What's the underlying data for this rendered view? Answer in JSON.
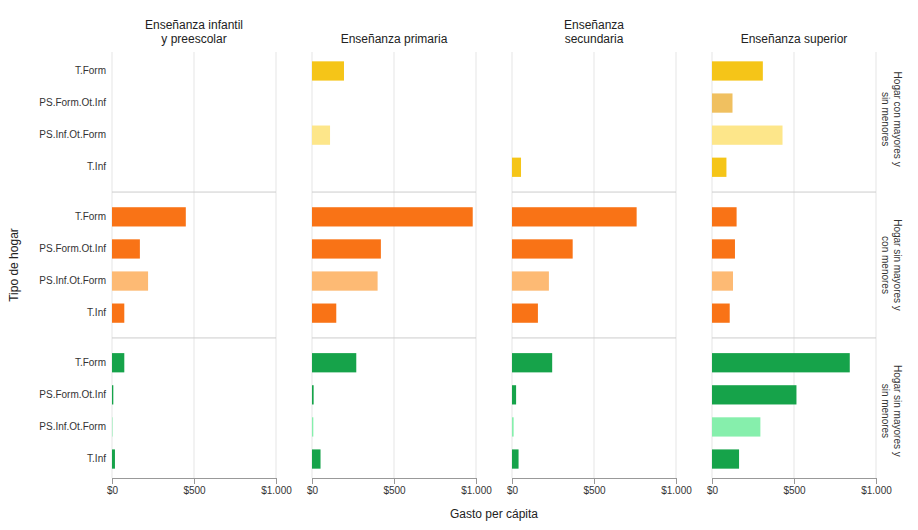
{
  "chart_data": [
    {
      "type": "bar",
      "orientation": "horizontal",
      "title": "Enseñanza infantil\ny preescolar",
      "xlabel": "Gasto per cápita",
      "ylabel": "Tipo de hogar",
      "categories": [
        "T.Form",
        "PS.Form.Ot.Inf",
        "PS.Inf.Ot.Form",
        "T.Inf"
      ],
      "series": [
        {
          "colors": [
            "#f5c518",
            "#f0c060",
            "#fde68a",
            "#f5c518"
          ],
          "values": [
            0,
            0,
            0,
            0
          ]
        },
        {
          "colors": [
            "#f97316",
            "#f97316",
            "#fdba74",
            "#f97316"
          ],
          "values": [
            450,
            170,
            220,
            75
          ]
        },
        {
          "colors": [
            "#16a34a",
            "#16a34a",
            "#86efac",
            "#16a34a"
          ],
          "values": [
            75,
            8,
            3,
            18
          ]
        }
      ],
      "xlim": [
        0,
        1000
      ],
      "xticks": [
        {
          "value": 0,
          "label": "$0"
        },
        {
          "value": 500,
          "label": "$500"
        },
        {
          "value": 1000,
          "label": "$1.000"
        }
      ],
      "grid": true
    },
    {
      "type": "bar",
      "orientation": "horizontal",
      "title": "Enseñanza primaria",
      "categories": [
        "T.Form",
        "PS.Form.Ot.Inf",
        "PS.Inf.Ot.Form",
        "T.Inf"
      ],
      "series": [
        {
          "colors": [
            "#f5c518",
            "#f0c060",
            "#fde68a",
            "#f5c518"
          ],
          "values": [
            195,
            0,
            110,
            0
          ]
        },
        {
          "colors": [
            "#f97316",
            "#f97316",
            "#fdba74",
            "#f97316"
          ],
          "values": [
            980,
            420,
            400,
            148
          ]
        },
        {
          "colors": [
            "#16a34a",
            "#16a34a",
            "#86efac",
            "#16a34a"
          ],
          "values": [
            270,
            10,
            8,
            52
          ]
        }
      ],
      "xlim": [
        0,
        1000
      ],
      "xticks": [
        {
          "value": 0,
          "label": "$0"
        },
        {
          "value": 500,
          "label": "$500"
        },
        {
          "value": 1000,
          "label": "$1.000"
        }
      ],
      "grid": true,
      "tick_labels": "x"
    },
    {
      "type": "bar",
      "orientation": "horizontal",
      "title": "Enseñanza\nsecundaria",
      "categories": [
        "T.Form",
        "PS.Form.Ot.Inf",
        "PS.Inf.Ot.Form",
        "T.Inf"
      ],
      "series": [
        {
          "colors": [
            "#f5c518",
            "#f0c060",
            "#fde68a",
            "#f5c518"
          ],
          "values": [
            0,
            0,
            0,
            55
          ]
        },
        {
          "colors": [
            "#f97316",
            "#f97316",
            "#fdba74",
            "#f97316"
          ],
          "values": [
            760,
            370,
            225,
            158
          ]
        },
        {
          "colors": [
            "#16a34a",
            "#16a34a",
            "#86efac",
            "#16a34a"
          ],
          "values": [
            245,
            25,
            10,
            40
          ]
        }
      ],
      "xlim": [
        0,
        1000
      ],
      "xticks": [
        {
          "value": 0,
          "label": "$0"
        },
        {
          "value": 500,
          "label": "$500"
        },
        {
          "value": 1000,
          "label": "$1.000"
        }
      ],
      "grid": true,
      "tick_labels": "x"
    },
    {
      "type": "bar",
      "orientation": "horizontal",
      "title": "Enseñanza superior",
      "categories": [
        "T.Form",
        "PS.Form.Ot.Inf",
        "PS.Inf.Ot.Form",
        "T.Inf"
      ],
      "series": [
        {
          "name": "Hogar con mayores y\nsin menores",
          "colors": [
            "#f5c518",
            "#f0c060",
            "#fde68a",
            "#f5c518"
          ],
          "values": [
            310,
            125,
            430,
            88
          ]
        },
        {
          "name": "Hogar sin mayores y\ncon menores",
          "colors": [
            "#f97316",
            "#f97316",
            "#fdba74",
            "#f97316"
          ],
          "values": [
            150,
            140,
            128,
            108
          ]
        },
        {
          "name": "Hogar sin mayores y\nsin menores",
          "colors": [
            "#16a34a",
            "#16a34a",
            "#86efac",
            "#16a34a"
          ],
          "values": [
            840,
            515,
            295,
            165
          ]
        }
      ],
      "xlim": [
        0,
        1000
      ],
      "xticks": [
        {
          "value": 0,
          "label": "$0"
        },
        {
          "value": 500,
          "label": "$500"
        },
        {
          "value": 1000,
          "label": "$1.000"
        }
      ],
      "grid": true,
      "tick_labels": "x"
    }
  ]
}
